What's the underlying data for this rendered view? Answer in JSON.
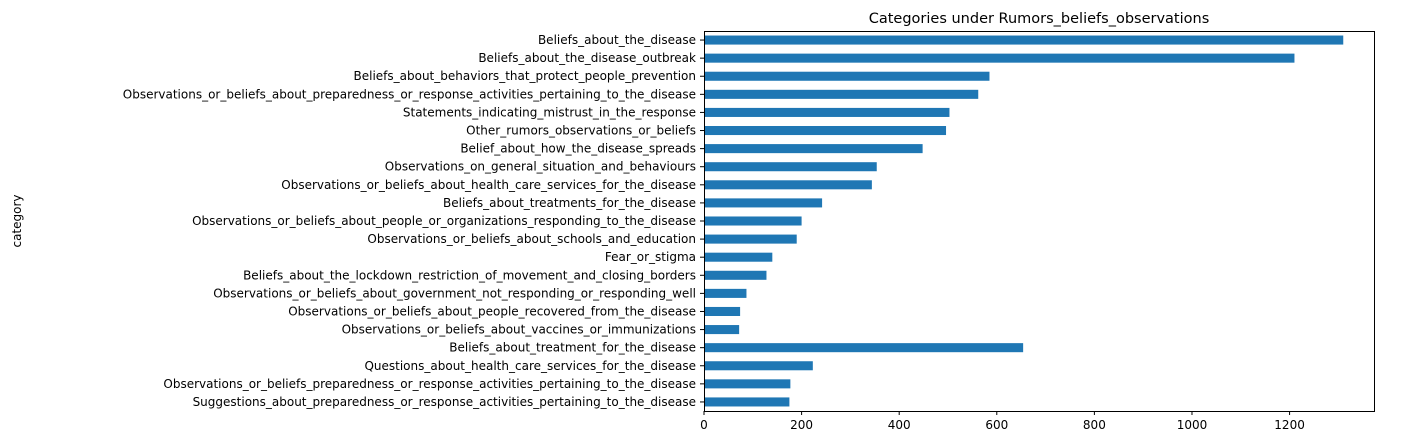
{
  "chart_data": {
    "type": "bar",
    "orientation": "horizontal",
    "title": "Categories under Rumors_beliefs_observations",
    "xlabel": "",
    "ylabel": "category",
    "xlim": [
      0,
      1373
    ],
    "xticks": [
      0,
      200,
      400,
      600,
      800,
      1000,
      1200
    ],
    "grid": false,
    "legend": "none",
    "bar_color": "#1f77b4",
    "categories": [
      "Beliefs_about_the_disease",
      "Beliefs_about_the_disease_outbreak",
      "Beliefs_about_behaviors_that_protect_people_prevention",
      "Observations_or_beliefs_about_preparedness_or_response_activities_pertaining_to_the_disease",
      "Statements_indicating_mistrust_in_the_response",
      "Other_rumors_observations_or_beliefs",
      "Belief_about_how_the_disease_spreads",
      "Observations_on_general_situation_and_behaviours",
      "Observations_or_beliefs_about_health_care_services_for_the_disease",
      "Beliefs_about_treatments_for_the_disease",
      "Observations_or_beliefs_about_people_or_organizations_responding_to_the_disease",
      "Observations_or_beliefs_about_schools_and_education",
      "Fear_or_stigma",
      "Beliefs_about_the_lockdown_restriction_of_movement_and_closing_borders",
      "Observations_or_beliefs_about_government_not_responding_or_responding_well",
      "Observations_or_beliefs_about_people_recovered_from_the_disease",
      "Observations_or_beliefs_about_vaccines_or_immunizations",
      "Beliefs_about_treatment_for_the_disease",
      "Questions_about_health_care_services_for_the_disease",
      "Observations_or_beliefs_preparedness_or_response_activities_pertaining_to_the_disease",
      "Suggestions_about_preparedness_or_response_activities_pertaining_to_the_disease"
    ],
    "values": [
      1310,
      1210,
      585,
      562,
      503,
      496,
      448,
      354,
      344,
      242,
      200,
      190,
      140,
      128,
      87,
      74,
      72,
      654,
      223,
      177,
      175
    ]
  }
}
